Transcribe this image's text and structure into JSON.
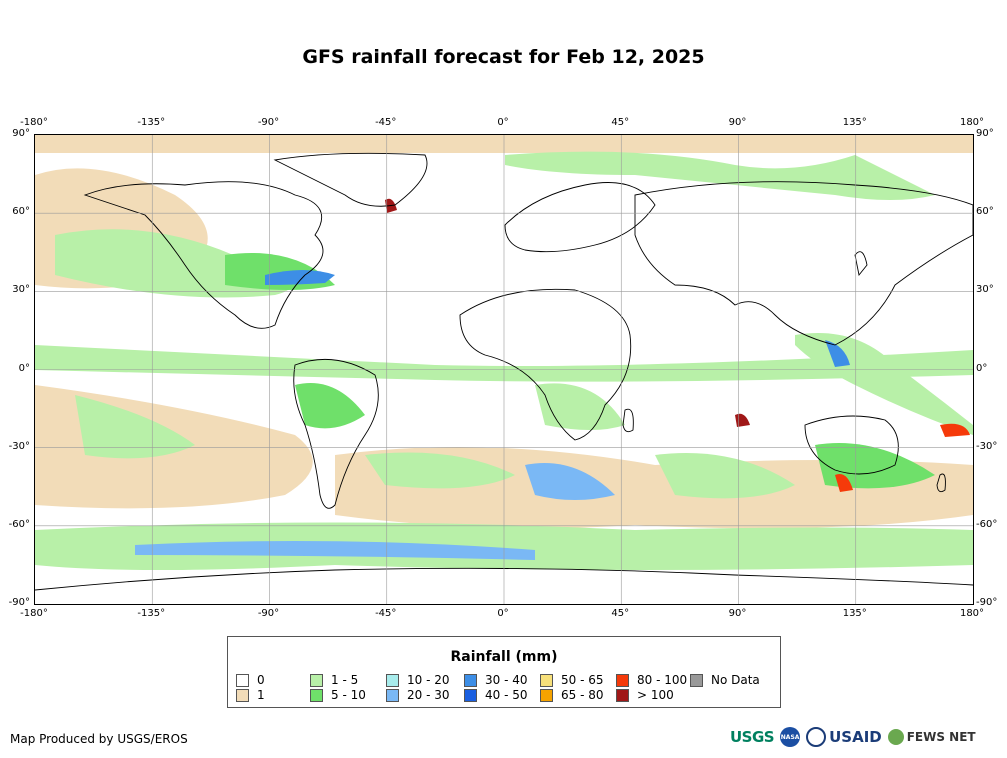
{
  "title": "GFS rainfall forecast for Feb 12, 2025",
  "longitude_labels": [
    "-180°",
    "-135°",
    "-90°",
    "-45°",
    "0°",
    "45°",
    "90°",
    "135°",
    "180°"
  ],
  "latitude_labels": [
    "90°",
    "60°",
    "30°",
    "0°",
    "-30°",
    "-60°",
    "-90°"
  ],
  "legend": {
    "title": "Rainfall (mm)",
    "items": [
      {
        "label": "0",
        "color": "#ffffff"
      },
      {
        "label": "1",
        "color": "#f2dcb8"
      },
      {
        "label": "1 - 5",
        "color": "#b8f0a8"
      },
      {
        "label": "5 - 10",
        "color": "#6fe06a"
      },
      {
        "label": "10 - 20",
        "color": "#a8ecec"
      },
      {
        "label": "20 - 30",
        "color": "#7ab8f5"
      },
      {
        "label": "30 - 40",
        "color": "#3d8ee6"
      },
      {
        "label": "40 - 50",
        "color": "#1a5fe0"
      },
      {
        "label": "50 - 65",
        "color": "#f7e07a"
      },
      {
        "label": "65 - 80",
        "color": "#f5a300"
      },
      {
        "label": "80 - 100",
        "color": "#f53a0a"
      },
      {
        "label": "> 100",
        "color": "#a01818"
      },
      {
        "label": "No Data",
        "color": "#999999"
      }
    ]
  },
  "credit": "Map Produced by USGS/EROS",
  "logos": {
    "usgs": "USGS",
    "nasa": "NASA",
    "usaid": "USAID",
    "fews": "FEWS NET"
  }
}
